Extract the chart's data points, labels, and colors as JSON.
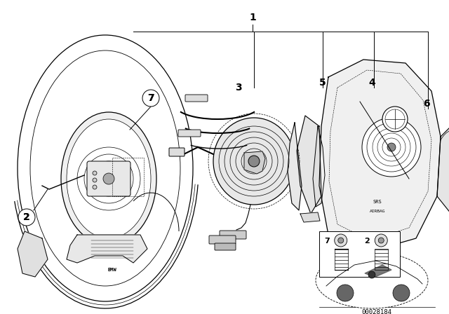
{
  "bg_color": "#ffffff",
  "line_color": "#000000",
  "catalog_number": "00028184",
  "figsize": [
    6.4,
    4.48
  ],
  "dpi": 100,
  "label_1": "1",
  "label_2": "2",
  "label_3": "3",
  "label_4": "4",
  "label_5": "5",
  "label_6": "6",
  "label_7": "7"
}
